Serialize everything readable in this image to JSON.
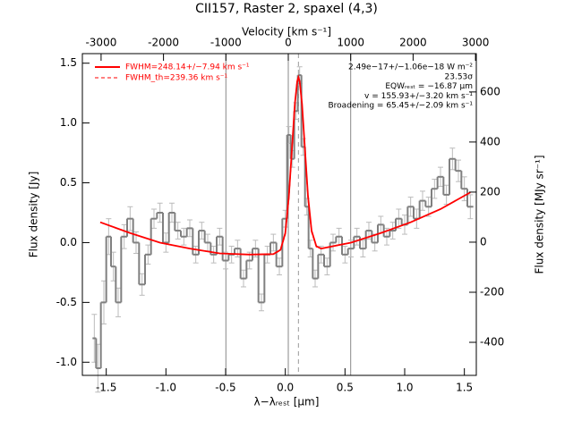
{
  "chart_data": {
    "type": "line",
    "title": "CII157, Raster 2, spaxel (4,3)",
    "x_label": "λ−λᵣₑₛₜ [µm]",
    "x2_label": "Velocity [km s⁻¹]",
    "y_label": "Flux density [Jy]",
    "y2_label": "Flux density [MJy sr⁻¹]",
    "xlim": [
      -1.7,
      1.6
    ],
    "xticks": [
      {
        "value": -1.5,
        "label": "-1.5"
      },
      {
        "value": -1.0,
        "label": "-1.0"
      },
      {
        "value": -0.5,
        "label": "-0.5"
      },
      {
        "value": 0,
        "label": "0.0"
      },
      {
        "value": 0.5,
        "label": "0.5"
      },
      {
        "value": 1.0,
        "label": "1.0"
      },
      {
        "value": 1.5,
        "label": "1.5"
      }
    ],
    "x2lim": [
      -3300,
      3013
    ],
    "x2ticks": [
      -3000,
      -2000,
      -1000,
      0,
      1000,
      2000,
      3000
    ],
    "ylim": [
      -1.11,
      1.58
    ],
    "yticks": [
      {
        "value": -1.0,
        "label": "-1.0"
      },
      {
        "value": -0.5,
        "label": "-0.5"
      },
      {
        "value": 0,
        "label": "0.0"
      },
      {
        "value": 0.5,
        "label": "0.5"
      },
      {
        "value": 1.0,
        "label": "1.0"
      },
      {
        "value": 1.5,
        "label": "1.5"
      }
    ],
    "y2lim": [
      -532,
      753
    ],
    "y2ticks": [
      -400,
      -200,
      0,
      200,
      400,
      600
    ],
    "velocity_lines": [
      -1000,
      0,
      1000
    ],
    "center_line": 0.11,
    "spectrum": {
      "color": "#808080",
      "x": [
        -1.6,
        -1.57,
        -1.52,
        -1.48,
        -1.44,
        -1.4,
        -1.35,
        -1.3,
        -1.25,
        -1.2,
        -1.15,
        -1.1,
        -1.05,
        -1.0,
        -0.95,
        -0.9,
        -0.85,
        -0.8,
        -0.75,
        -0.7,
        -0.65,
        -0.6,
        -0.55,
        -0.5,
        -0.45,
        -0.4,
        -0.35,
        -0.3,
        -0.25,
        -0.2,
        -0.15,
        -0.1,
        -0.05,
        0.0,
        0.03,
        0.06,
        0.09,
        0.12,
        0.15,
        0.18,
        0.21,
        0.25,
        0.3,
        0.35,
        0.4,
        0.45,
        0.5,
        0.55,
        0.6,
        0.65,
        0.7,
        0.75,
        0.8,
        0.85,
        0.9,
        0.95,
        1.0,
        1.05,
        1.1,
        1.15,
        1.2,
        1.25,
        1.3,
        1.35,
        1.4,
        1.45,
        1.5,
        1.55
      ],
      "values": [
        -0.8,
        -1.05,
        -0.5,
        0.05,
        -0.2,
        -0.5,
        0.05,
        0.2,
        0.0,
        -0.35,
        -0.1,
        0.2,
        0.25,
        0.0,
        0.25,
        0.1,
        0.05,
        0.12,
        -0.1,
        0.1,
        0.0,
        -0.1,
        0.05,
        -0.15,
        -0.1,
        -0.05,
        -0.3,
        -0.15,
        -0.05,
        -0.5,
        -0.1,
        0.0,
        -0.2,
        0.2,
        0.9,
        0.7,
        1.1,
        1.4,
        0.8,
        0.3,
        -0.05,
        -0.3,
        -0.1,
        -0.2,
        0.0,
        0.05,
        -0.1,
        -0.05,
        0.05,
        -0.05,
        0.1,
        0.0,
        0.15,
        0.05,
        0.1,
        0.2,
        0.15,
        0.3,
        0.2,
        0.35,
        0.3,
        0.45,
        0.55,
        0.4,
        0.7,
        0.6,
        0.45,
        0.3
      ],
      "errors": [
        0.2,
        0.2,
        0.18,
        0.15,
        0.12,
        0.12,
        0.1,
        0.1,
        0.09,
        0.09,
        0.08,
        0.08,
        0.08,
        0.08,
        0.08,
        0.07,
        0.07,
        0.07,
        0.07,
        0.07,
        0.07,
        0.07,
        0.07,
        0.07,
        0.07,
        0.07,
        0.07,
        0.07,
        0.07,
        0.07,
        0.07,
        0.07,
        0.07,
        0.07,
        0.07,
        0.07,
        0.07,
        0.07,
        0.07,
        0.07,
        0.07,
        0.07,
        0.07,
        0.07,
        0.07,
        0.07,
        0.07,
        0.07,
        0.07,
        0.07,
        0.07,
        0.07,
        0.07,
        0.07,
        0.07,
        0.08,
        0.08,
        0.08,
        0.08,
        0.08,
        0.08,
        0.08,
        0.08,
        0.08,
        0.09,
        0.09,
        0.1,
        0.1
      ]
    },
    "series": [
      {
        "name": "FWHM=248.14+/−7.94 km s⁻¹",
        "color": "#ff0000",
        "dash": false,
        "x": [
          -1.55,
          -1.3,
          -1.05,
          -0.8,
          -0.55,
          -0.3,
          -0.1,
          -0.04,
          0.0,
          0.03,
          0.06,
          0.08,
          0.1,
          0.11,
          0.12,
          0.14,
          0.16,
          0.19,
          0.22,
          0.26,
          0.3,
          0.55,
          0.8,
          1.05,
          1.3,
          1.55
        ],
        "values": [
          0.17,
          0.08,
          0.0,
          -0.05,
          -0.09,
          -0.1,
          -0.096,
          -0.06,
          0.08,
          0.39,
          0.85,
          1.16,
          1.35,
          1.38,
          1.35,
          1.16,
          0.85,
          0.39,
          0.1,
          -0.03,
          -0.05,
          0.0,
          0.08,
          0.17,
          0.28,
          0.42
        ]
      },
      {
        "name": "FWHM_th=239.36 km s⁻¹",
        "color": "#ff0000",
        "dash": true,
        "x": [
          -1.55,
          -1.3,
          -1.05,
          -0.8,
          -0.55,
          -0.3,
          -0.1,
          -0.04,
          0.0,
          0.03,
          0.06,
          0.08,
          0.1,
          0.11,
          0.12,
          0.14,
          0.16,
          0.19,
          0.22,
          0.26,
          0.3,
          0.55,
          0.8,
          1.05,
          1.3,
          1.55
        ],
        "values": [
          0.17,
          0.08,
          0.0,
          -0.05,
          -0.09,
          -0.1,
          -0.096,
          -0.065,
          0.07,
          0.37,
          0.84,
          1.16,
          1.36,
          1.39,
          1.36,
          1.16,
          0.84,
          0.37,
          0.09,
          -0.035,
          -0.05,
          0.0,
          0.08,
          0.17,
          0.28,
          0.42
        ]
      }
    ],
    "annotations": [
      "2.49e−17+/−1.06e−18 W m⁻²",
      "23.53σ",
      "EQWᵣₑₛₜ = −16.87 µm",
      "v = 155.93+/−3.20 km s⁻¹",
      "Broadening = 65.45+/−2.09 km s⁻¹"
    ]
  }
}
